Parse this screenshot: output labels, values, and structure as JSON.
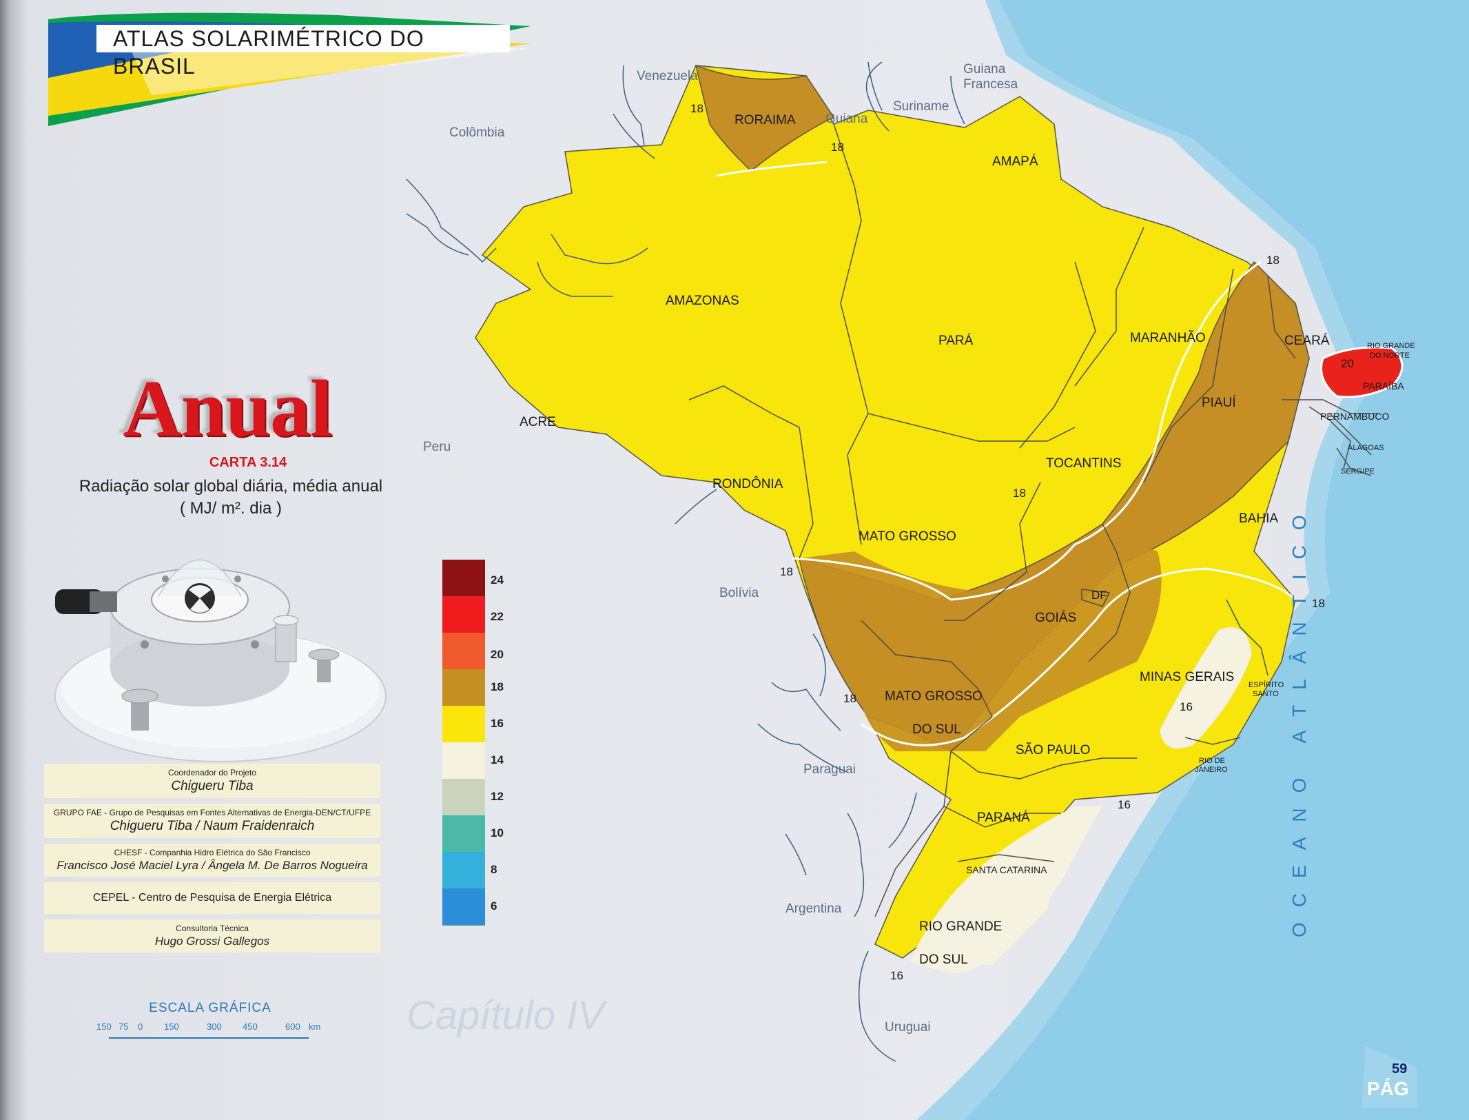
{
  "header": {
    "title": "ATLAS  SOLARIMÉTRICO DO  BRASIL"
  },
  "panel": {
    "big_title": "Anual",
    "carta": "CARTA 3.14",
    "subtitle_line1": "Radiação solar global diária, média anual",
    "subtitle_line2": "( MJ/ m². dia )"
  },
  "credits": [
    {
      "role": "Coordenador do Projeto",
      "names": "Chigueru  Tiba"
    },
    {
      "role": "GRUPO  FAE - Grupo de Pesquisas em Fontes Alternativas de Energia-DEN/CT/UFPE",
      "names": "Chigueru Tiba /   Naum  Fraidenraich"
    },
    {
      "role": "CHESF  -  Companhia Hidro Elétrica do São Francisco",
      "names": "Francisco José Maciel Lyra / Ângela M. De Barros Nogueira"
    },
    {
      "role": "CEPEL - Centro de Pesquisa de Energia Elétrica",
      "names": ""
    },
    {
      "role": "Consultoria Técnica",
      "names": "Hugo  Grossi Gallegos"
    }
  ],
  "scale": {
    "title": "ESCALA  GRÁFICA",
    "ticks": [
      "150",
      "75",
      "0",
      "150",
      "300",
      "450",
      "600",
      "km"
    ]
  },
  "legend": [
    {
      "value": "24",
      "color": "#8e1214"
    },
    {
      "value": "22",
      "color": "#ee1c1c"
    },
    {
      "value": "20",
      "color": "#f05a2c"
    },
    {
      "value": "18",
      "color": "#c68f22"
    },
    {
      "value": "16",
      "color": "#fbe60c"
    },
    {
      "value": "14",
      "color": "#f5f3df"
    },
    {
      "value": "12",
      "color": "#c9d3bd"
    },
    {
      "value": "10",
      "color": "#4cb8a7"
    },
    {
      "value": "8",
      "color": "#34b0dc"
    },
    {
      "value": "6",
      "color": "#2a8fd8"
    }
  ],
  "map": {
    "countries": {
      "venezuela": "Venezuela",
      "guiana": "Guiana",
      "suriname": "Suriname",
      "guiana_francesa_1": "Guiana",
      "guiana_francesa_2": "Francesa",
      "colombia": "Colômbia",
      "peru": "Peru",
      "bolivia": "Bolívia",
      "paraguai": "Paraguai",
      "argentina": "Argentina",
      "uruguai": "Uruguai"
    },
    "states": {
      "roraima": "RORAIMA",
      "amapa": "AMAPÁ",
      "amazonas": "AMAZONAS",
      "para": "PARÁ",
      "maranhao": "MARANHÃO",
      "ceara": "CEARÁ",
      "rio_grande_do_norte_1": "RIO GRANDE",
      "rio_grande_do_norte_2": "DO NORTE",
      "paraiba": "PARAÍBA",
      "pernambuco": "PERNAMBUCO",
      "alagoas": "ALAGOAS",
      "sergipe": "SERGIPE",
      "piaui": "PIAUÍ",
      "acre": "ACRE",
      "rondonia": "RONDÔNIA",
      "tocantins": "TOCANTINS",
      "bahia": "BAHIA",
      "mato_grosso": "MATO  GROSSO",
      "df": "DF",
      "goias": "GOIÁS",
      "mato_grosso_do_sul_1": "MATO  GROSSO",
      "mato_grosso_do_sul_2": "DO SUL",
      "minas_gerais": "MINAS  GERAIS",
      "espirito_santo_1": "ESPÍRITO",
      "espirito_santo_2": "SANTO",
      "rio_de_janeiro_1": "RIO DE",
      "rio_de_janeiro_2": "JANEIRO",
      "sao_paulo": "SÃO  PAULO",
      "parana": "PARANÁ",
      "santa_catarina": "SANTA CATARINA",
      "rio_grande_do_sul_1": "RIO GRANDE",
      "rio_grande_do_sul_2": "DO  SUL"
    },
    "isolines": {
      "i1": "18",
      "i2": "18",
      "i3": "18",
      "i4": "18",
      "i5": "18",
      "i6": "18",
      "i7": "18",
      "i8": "20",
      "i9": "16",
      "i10": "16",
      "i11": "16"
    },
    "ocean_label": "OCEANO ATLÂNTICO"
  },
  "watermark": "Capítulo IV",
  "footer": {
    "page_number": "59",
    "pag_label": "PÁG"
  }
}
